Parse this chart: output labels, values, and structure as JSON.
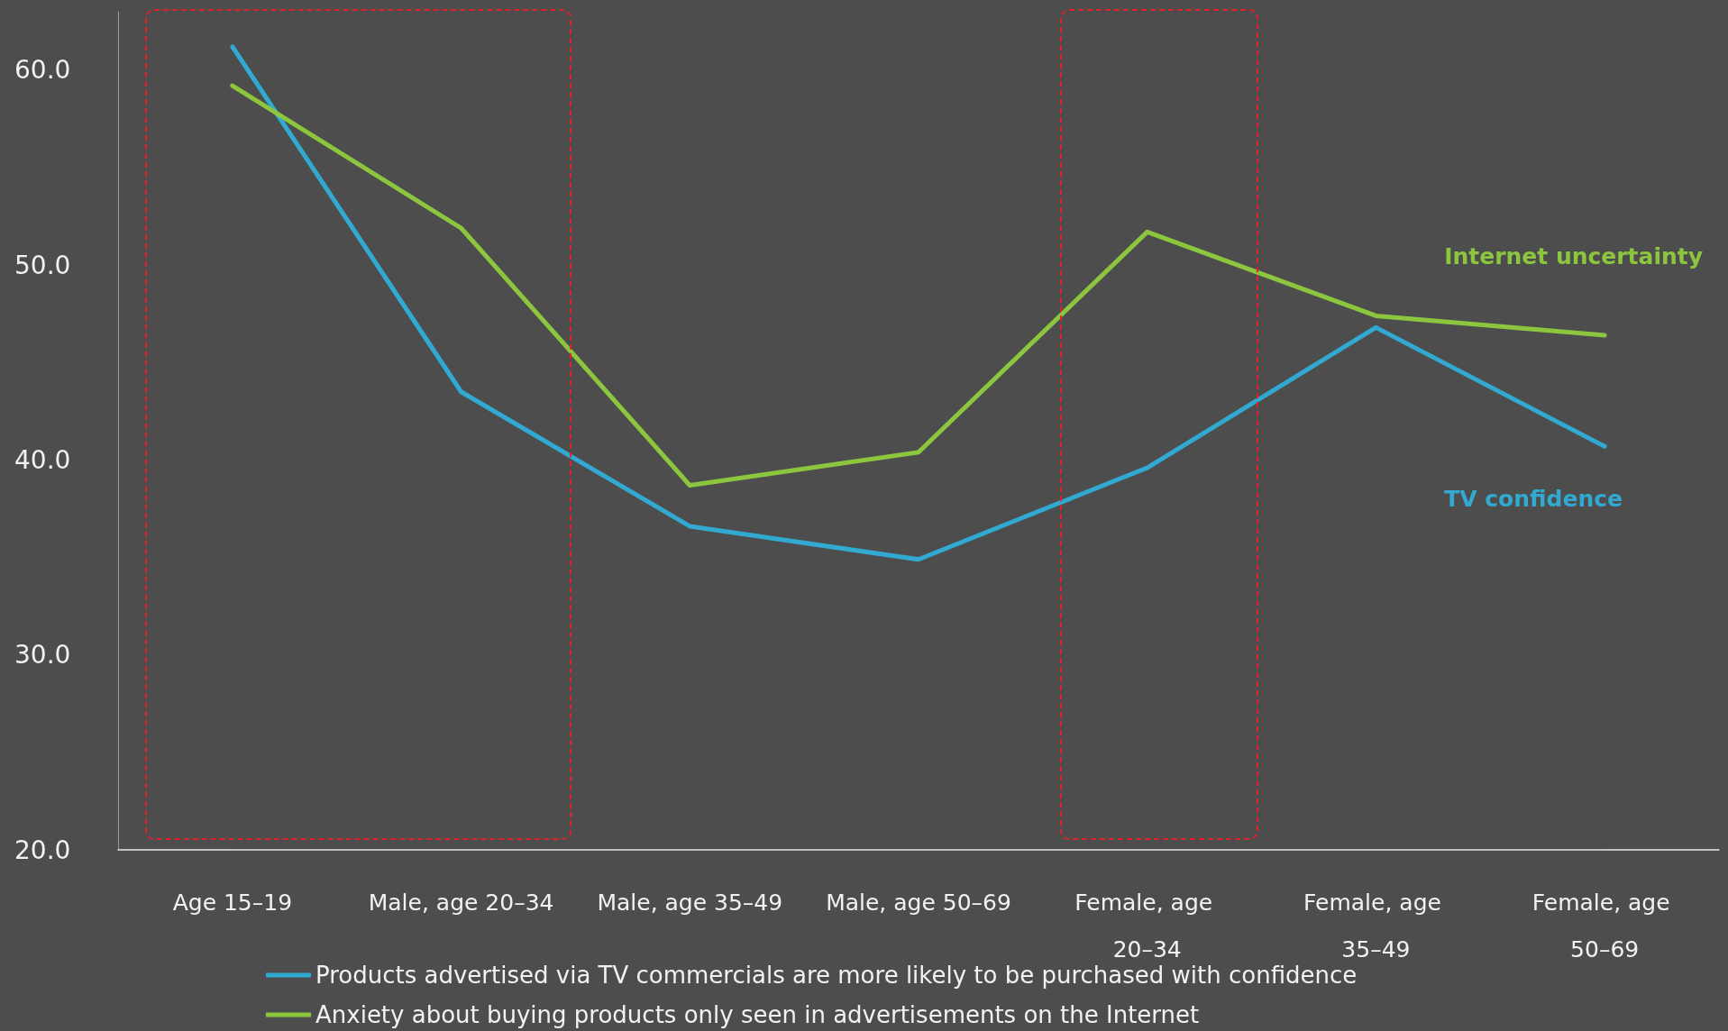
{
  "chart_data": {
    "type": "line",
    "categories": [
      "Age 15–19",
      "Male, age 20–34",
      "Male, age 35–49",
      "Male, age 50–69",
      "Female, age 20–34",
      "Female, age 35–49",
      "Female, age 50–69"
    ],
    "series": [
      {
        "name": "Products advertised via TV commercials are more likely to be purchased with confidence",
        "color": "#31a9d1",
        "values": [
          61.2,
          43.5,
          36.6,
          34.9,
          39.6,
          46.8,
          40.7
        ]
      },
      {
        "name": "Anxiety about buying products only seen in advertisements on the Internet",
        "color": "#8cc63f",
        "values": [
          59.2,
          51.9,
          38.7,
          40.4,
          51.7,
          47.4,
          46.4
        ]
      }
    ],
    "annotations": [
      "TV confidence",
      "Internet uncertainty"
    ],
    "ylim": [
      20,
      63
    ],
    "yticks": [
      {
        "value": 20,
        "label": "20.0"
      },
      {
        "value": 30,
        "label": "30.0"
      },
      {
        "value": 40,
        "label": "40.0"
      },
      {
        "value": 50,
        "label": "50.0"
      },
      {
        "value": 60,
        "label": "60.0"
      }
    ],
    "grid": false,
    "legend": "bottom",
    "marker": "none",
    "line_style": "solid"
  }
}
